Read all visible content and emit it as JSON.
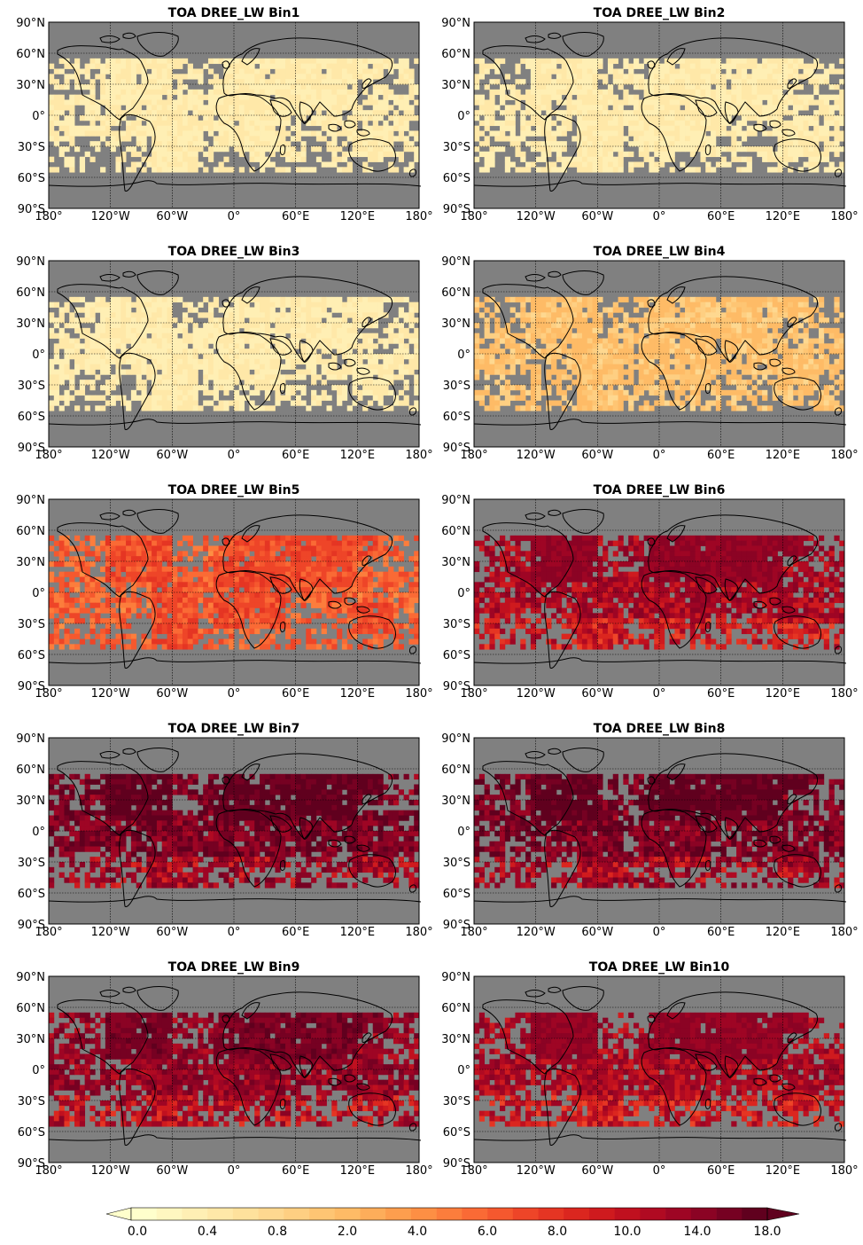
{
  "chart_data": {
    "type": "heatmap",
    "projection": "equirectangular",
    "panel_titles": [
      "TOA DREE_LW Bin1",
      "TOA DREE_LW Bin2",
      "TOA DREE_LW Bin3",
      "TOA DREE_LW Bin4",
      "TOA DREE_LW Bin5",
      "TOA DREE_LW Bin6",
      "TOA DREE_LW Bin7",
      "TOA DREE_LW Bin8",
      "TOA DREE_LW Bin9",
      "TOA DREE_LW Bin10"
    ],
    "lat_ticks": [
      "90°N",
      "60°N",
      "30°N",
      "0°",
      "30°S",
      "60°S",
      "90°S"
    ],
    "lon_ticks": [
      "180°",
      "120°W",
      "60°W",
      "0°",
      "60°E",
      "120°E",
      "180°"
    ],
    "xlim": [
      -180,
      180
    ],
    "ylim": [
      -90,
      90
    ],
    "data_lat_range": [
      -55,
      55
    ],
    "grid": true,
    "missing_color": "#808080",
    "approx_typical_value_by_bin": [
      0.3,
      0.3,
      0.3,
      0.8,
      3.5,
      10.0,
      14.0,
      14.0,
      12.0,
      10.0
    ],
    "colorbar": {
      "boundaries": [
        0.0,
        0.1,
        0.2,
        0.3,
        0.4,
        0.5,
        0.6,
        0.7,
        0.8,
        1.2,
        1.6,
        2.0,
        2.5,
        3.0,
        3.5,
        4.0,
        5.0,
        6.0,
        7.0,
        8.0,
        9.0,
        10.0,
        12.0,
        14.0,
        16.0,
        18.0
      ],
      "tick_labels": [
        "0.0",
        "0.4",
        "0.8",
        "2.0",
        "4.0",
        "6.0",
        "8.0",
        "10.0",
        "14.0",
        "18.0"
      ],
      "colors": [
        "#ffffcc",
        "#fff7c0",
        "#ffefb4",
        "#ffe8a8",
        "#fee19c",
        "#fed890",
        "#fecf82",
        "#fec573",
        "#febb66",
        "#fdad5a",
        "#fd9e4e",
        "#fd8f44",
        "#fc7d3c",
        "#fa6a35",
        "#f5582e",
        "#ee4528",
        "#e53523",
        "#db261f",
        "#cf1a1e",
        "#c0101f",
        "#b00a22",
        "#9e0524",
        "#8b0324",
        "#760122",
        "#60001e"
      ],
      "extend": "max"
    }
  },
  "colors": {
    "ocean_missing": "#808080",
    "coastline": "#000000"
  }
}
